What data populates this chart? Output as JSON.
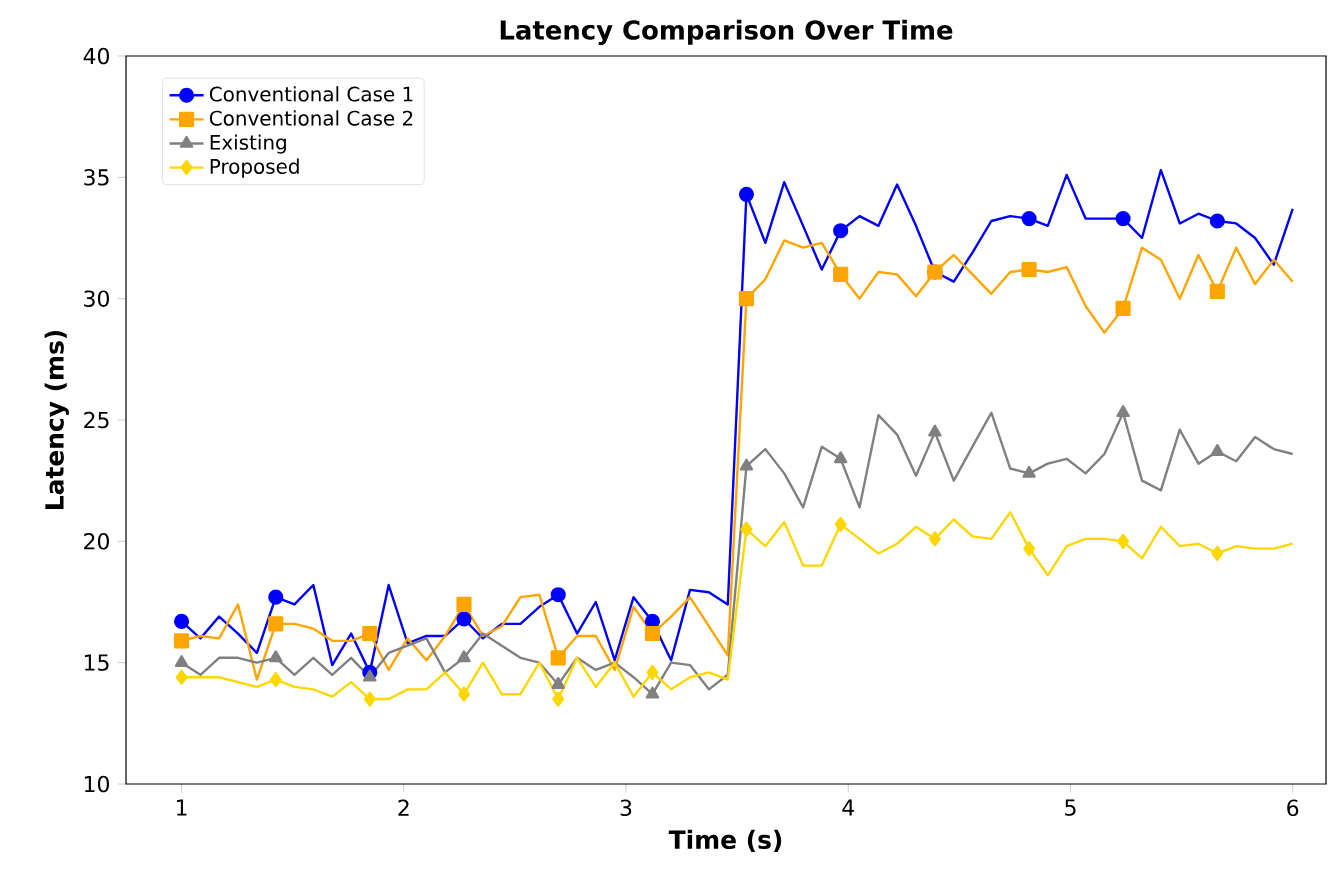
{
  "chart_data": {
    "type": "line",
    "title": "Latency Comparison Over Time",
    "xlabel": "Time (s)",
    "ylabel": "Latency (ms)",
    "x": [
      1.0,
      1.085,
      1.169,
      1.254,
      1.339,
      1.424,
      1.508,
      1.593,
      1.678,
      1.763,
      1.847,
      1.932,
      2.017,
      2.102,
      2.186,
      2.271,
      2.356,
      2.441,
      2.525,
      2.61,
      2.695,
      2.78,
      2.864,
      2.949,
      3.034,
      3.119,
      3.203,
      3.288,
      3.373,
      3.458,
      3.542,
      3.627,
      3.712,
      3.797,
      3.881,
      3.966,
      4.051,
      4.136,
      4.22,
      4.305,
      4.39,
      4.475,
      4.559,
      4.644,
      4.729,
      4.814,
      4.898,
      4.983,
      5.068,
      5.153,
      5.237,
      5.322,
      5.407,
      5.492,
      5.576,
      5.661,
      5.746,
      5.831,
      5.915,
      6.0
    ],
    "series": [
      {
        "name": "Conventional Case 1",
        "color": "#0000ff",
        "values": [
          16.7,
          16.0,
          16.9,
          16.2,
          15.4,
          17.7,
          17.4,
          18.2,
          14.9,
          16.2,
          14.6,
          18.2,
          15.8,
          16.1,
          16.1,
          16.8,
          16.0,
          16.6,
          16.6,
          17.3,
          17.8,
          16.2,
          17.5,
          15.1,
          17.7,
          16.7,
          15.1,
          18.0,
          17.9,
          17.4,
          34.3,
          32.3,
          34.8,
          33.0,
          31.2,
          32.8,
          33.4,
          33.0,
          34.7,
          33.0,
          31.1,
          30.7,
          31.9,
          33.2,
          33.4,
          33.3,
          33.0,
          35.1,
          33.3,
          33.3,
          33.3,
          32.5,
          35.3,
          33.1,
          33.5,
          33.2,
          33.1,
          32.5,
          31.4,
          33.7
        ]
      },
      {
        "name": "Conventional Case 2",
        "color": "#ffa500",
        "values": [
          15.9,
          16.1,
          16.0,
          17.4,
          14.3,
          16.6,
          16.6,
          16.4,
          15.9,
          15.9,
          16.2,
          14.7,
          16.0,
          15.1,
          16.1,
          17.4,
          16.1,
          16.5,
          17.7,
          17.8,
          15.2,
          16.1,
          16.1,
          14.7,
          17.3,
          16.2,
          16.9,
          17.7,
          16.5,
          15.3,
          30.0,
          30.8,
          32.4,
          32.1,
          32.3,
          31.0,
          30.0,
          31.1,
          31.0,
          30.1,
          31.1,
          31.8,
          31.0,
          30.2,
          31.1,
          31.2,
          31.1,
          31.3,
          29.7,
          28.6,
          29.6,
          32.1,
          31.6,
          30.0,
          31.8,
          30.3,
          32.1,
          30.6,
          31.6,
          30.7
        ]
      },
      {
        "name": "Existing",
        "color": "#808080",
        "values": [
          15.0,
          14.5,
          15.2,
          15.2,
          15.0,
          15.2,
          14.5,
          15.2,
          14.5,
          15.2,
          14.4,
          15.4,
          15.7,
          16.0,
          14.6,
          15.2,
          16.2,
          15.7,
          15.2,
          15.0,
          14.1,
          15.2,
          14.7,
          15.0,
          14.4,
          13.7,
          15.0,
          14.9,
          13.9,
          14.5,
          23.1,
          23.8,
          22.8,
          21.4,
          23.9,
          23.4,
          21.4,
          25.2,
          24.4,
          22.7,
          24.5,
          22.5,
          23.9,
          25.3,
          23.0,
          22.8,
          23.2,
          23.4,
          22.8,
          23.6,
          25.3,
          22.5,
          22.1,
          24.6,
          23.2,
          23.7,
          23.3,
          24.3,
          23.8,
          23.6
        ]
      },
      {
        "name": "Proposed",
        "color": "#ffd700",
        "values": [
          14.4,
          14.4,
          14.4,
          14.2,
          14.0,
          14.3,
          14.0,
          13.9,
          13.6,
          14.2,
          13.5,
          13.5,
          13.9,
          13.9,
          14.6,
          13.7,
          15.0,
          13.7,
          13.7,
          15.0,
          13.5,
          15.2,
          14.0,
          15.0,
          13.6,
          14.6,
          13.9,
          14.4,
          14.6,
          14.3,
          20.5,
          19.8,
          20.8,
          19.0,
          19.0,
          20.7,
          20.1,
          19.5,
          19.9,
          20.6,
          20.1,
          20.9,
          20.2,
          20.1,
          21.2,
          19.7,
          18.6,
          19.8,
          20.1,
          20.1,
          20.0,
          19.3,
          20.6,
          19.8,
          19.9,
          19.5,
          19.8,
          19.7,
          19.7,
          19.9
        ]
      }
    ],
    "xlim": [
      0.75,
      6.15
    ],
    "xticks": [
      1,
      2,
      3,
      4,
      5,
      6
    ],
    "ylim": [
      10,
      40
    ],
    "yticks": [
      10,
      15,
      20,
      25,
      30,
      35,
      40
    ],
    "legend": "top left",
    "grid": false,
    "line_style": "solid"
  }
}
